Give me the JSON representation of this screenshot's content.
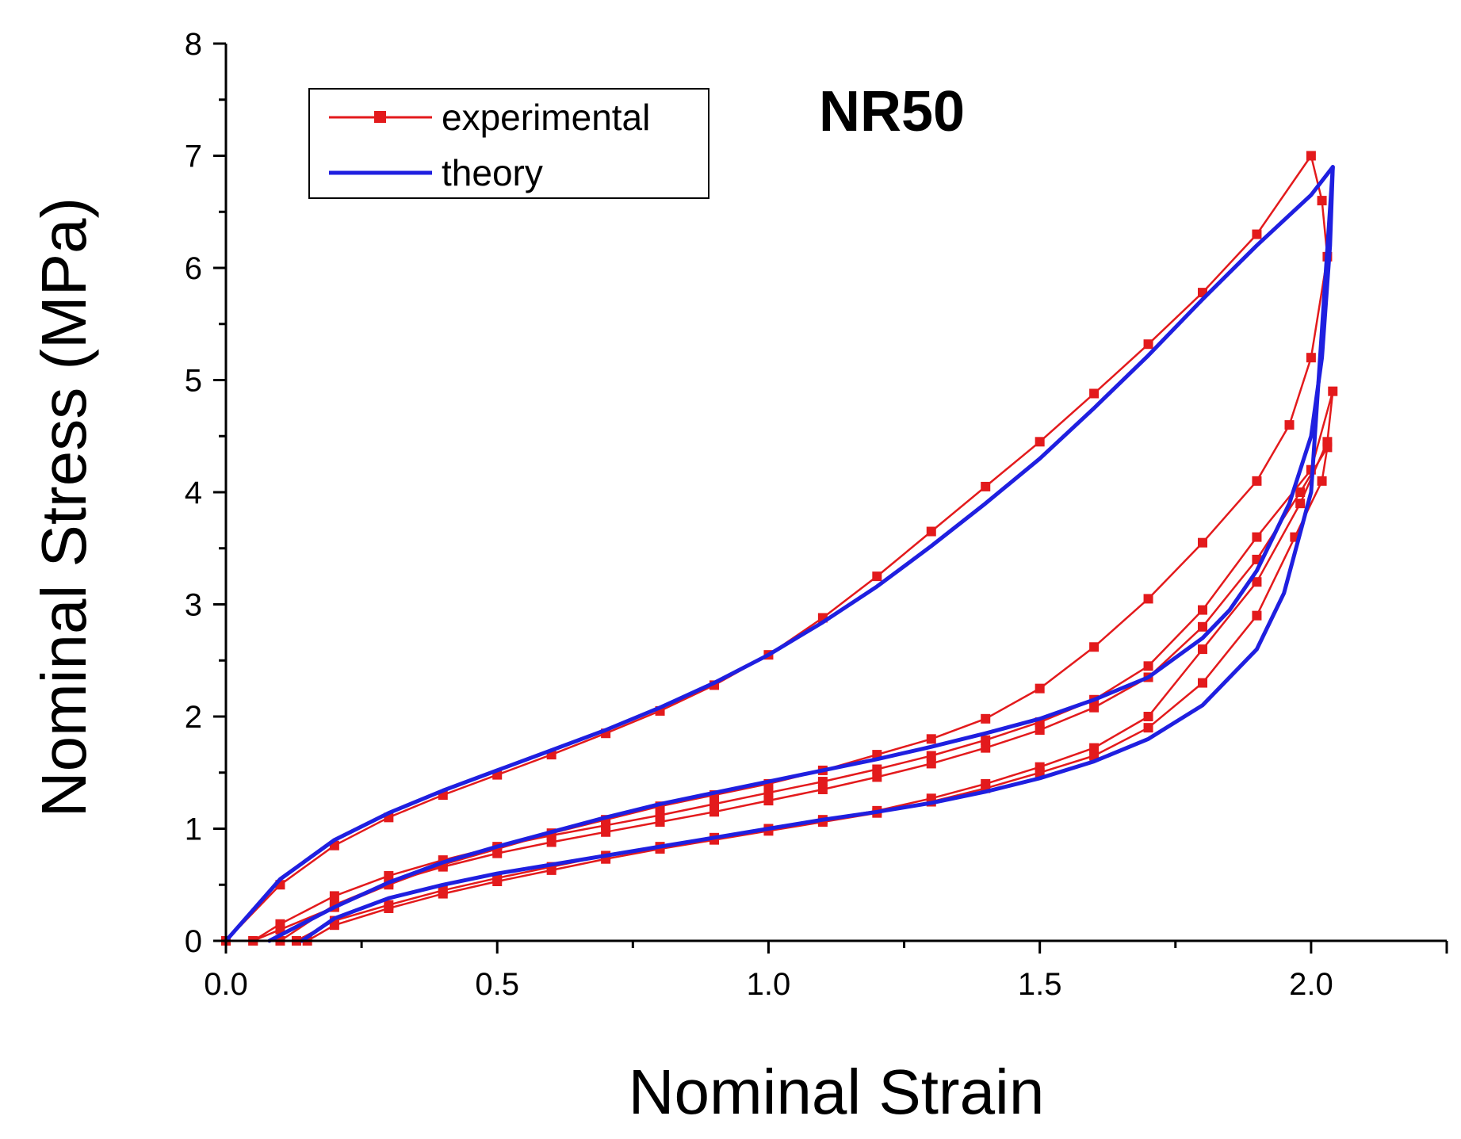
{
  "chart_data": {
    "type": "line",
    "title": "NR50",
    "xlabel": "Nominal Strain",
    "ylabel": "Nominal Stress (MPa)",
    "xlim": [
      0,
      2.25
    ],
    "ylim": [
      0,
      8
    ],
    "x_ticks": [
      "0.0",
      "0.5",
      "1.0",
      "1.5",
      "2.0"
    ],
    "x_tick_values": [
      0,
      0.5,
      1.0,
      1.5,
      2.0
    ],
    "y_ticks": [
      "0",
      "1",
      "2",
      "3",
      "4",
      "5",
      "6",
      "7",
      "8"
    ],
    "y_tick_values": [
      0,
      1,
      2,
      3,
      4,
      5,
      6,
      7,
      8
    ],
    "legend": {
      "position": "top-left",
      "entries": [
        {
          "label": "experimental",
          "color": "#e31a1c",
          "marker": "square"
        },
        {
          "label": "theory",
          "color": "#1f1fe0",
          "marker": "none"
        }
      ]
    },
    "series": [
      {
        "name": "experimental",
        "color": "#e31a1c",
        "marker": "square",
        "curves": [
          [
            [
              0,
              0
            ],
            [
              0.1,
              0.5
            ],
            [
              0.2,
              0.85
            ],
            [
              0.3,
              1.1
            ],
            [
              0.4,
              1.3
            ],
            [
              0.5,
              1.48
            ],
            [
              0.6,
              1.66
            ],
            [
              0.7,
              1.85
            ],
            [
              0.8,
              2.05
            ],
            [
              0.9,
              2.28
            ],
            [
              1.0,
              2.55
            ],
            [
              1.1,
              2.88
            ],
            [
              1.2,
              3.25
            ],
            [
              1.3,
              3.65
            ],
            [
              1.4,
              4.05
            ],
            [
              1.5,
              4.45
            ],
            [
              1.6,
              4.88
            ],
            [
              1.7,
              5.32
            ],
            [
              1.8,
              5.78
            ],
            [
              1.9,
              6.3
            ],
            [
              2.0,
              7.0
            ],
            [
              2.02,
              6.6
            ],
            [
              2.03,
              6.1
            ],
            [
              2.0,
              5.2
            ],
            [
              1.96,
              4.6
            ],
            [
              1.9,
              4.1
            ],
            [
              1.8,
              3.55
            ],
            [
              1.7,
              3.05
            ],
            [
              1.6,
              2.62
            ],
            [
              1.5,
              2.25
            ],
            [
              1.4,
              1.98
            ],
            [
              1.3,
              1.8
            ],
            [
              1.2,
              1.66
            ],
            [
              1.1,
              1.52
            ],
            [
              1.0,
              1.4
            ],
            [
              0.9,
              1.3
            ],
            [
              0.8,
              1.2
            ],
            [
              0.7,
              1.08
            ],
            [
              0.6,
              0.96
            ],
            [
              0.5,
              0.82
            ],
            [
              0.4,
              0.68
            ],
            [
              0.3,
              0.5
            ],
            [
              0.2,
              0.3
            ],
            [
              0.1,
              0.1
            ],
            [
              0.05,
              0
            ]
          ],
          [
            [
              0.05,
              0
            ],
            [
              0.1,
              0.15
            ],
            [
              0.2,
              0.4
            ],
            [
              0.3,
              0.58
            ],
            [
              0.4,
              0.72
            ],
            [
              0.5,
              0.84
            ],
            [
              0.6,
              0.94
            ],
            [
              0.7,
              1.03
            ],
            [
              0.8,
              1.12
            ],
            [
              0.9,
              1.22
            ],
            [
              1.0,
              1.32
            ],
            [
              1.1,
              1.42
            ],
            [
              1.2,
              1.53
            ],
            [
              1.3,
              1.65
            ],
            [
              1.4,
              1.79
            ],
            [
              1.5,
              1.95
            ],
            [
              1.6,
              2.15
            ],
            [
              1.7,
              2.45
            ],
            [
              1.8,
              2.95
            ],
            [
              1.9,
              3.6
            ],
            [
              2.0,
              4.2
            ],
            [
              2.04,
              4.9
            ],
            [
              2.03,
              4.45
            ],
            [
              1.98,
              3.9
            ],
            [
              1.9,
              3.2
            ],
            [
              1.8,
              2.6
            ],
            [
              1.7,
              2.0
            ],
            [
              1.6,
              1.72
            ],
            [
              1.5,
              1.55
            ],
            [
              1.4,
              1.4
            ],
            [
              1.3,
              1.27
            ],
            [
              1.2,
              1.16
            ],
            [
              1.1,
              1.08
            ],
            [
              1.0,
              1.0
            ],
            [
              0.9,
              0.92
            ],
            [
              0.8,
              0.84
            ],
            [
              0.7,
              0.76
            ],
            [
              0.6,
              0.66
            ],
            [
              0.5,
              0.56
            ],
            [
              0.4,
              0.45
            ],
            [
              0.3,
              0.32
            ],
            [
              0.2,
              0.18
            ],
            [
              0.13,
              0
            ]
          ],
          [
            [
              0.1,
              0
            ],
            [
              0.2,
              0.32
            ],
            [
              0.3,
              0.52
            ],
            [
              0.4,
              0.66
            ],
            [
              0.5,
              0.78
            ],
            [
              0.6,
              0.88
            ],
            [
              0.7,
              0.97
            ],
            [
              0.8,
              1.06
            ],
            [
              0.9,
              1.15
            ],
            [
              1.0,
              1.25
            ],
            [
              1.1,
              1.35
            ],
            [
              1.2,
              1.46
            ],
            [
              1.3,
              1.58
            ],
            [
              1.4,
              1.72
            ],
            [
              1.5,
              1.88
            ],
            [
              1.6,
              2.08
            ],
            [
              1.7,
              2.35
            ],
            [
              1.8,
              2.8
            ],
            [
              1.9,
              3.4
            ],
            [
              1.98,
              4.0
            ],
            [
              2.03,
              4.4
            ],
            [
              2.02,
              4.1
            ],
            [
              1.97,
              3.6
            ],
            [
              1.9,
              2.9
            ],
            [
              1.8,
              2.3
            ],
            [
              1.7,
              1.9
            ],
            [
              1.6,
              1.65
            ],
            [
              1.5,
              1.5
            ],
            [
              1.4,
              1.36
            ],
            [
              1.3,
              1.24
            ],
            [
              1.2,
              1.14
            ],
            [
              1.1,
              1.06
            ],
            [
              1.0,
              0.98
            ],
            [
              0.9,
              0.9
            ],
            [
              0.8,
              0.82
            ],
            [
              0.7,
              0.73
            ],
            [
              0.6,
              0.63
            ],
            [
              0.5,
              0.53
            ],
            [
              0.4,
              0.42
            ],
            [
              0.3,
              0.29
            ],
            [
              0.2,
              0.14
            ],
            [
              0.15,
              0
            ]
          ]
        ]
      },
      {
        "name": "theory",
        "color": "#1f1fe0",
        "marker": "none",
        "curves": [
          [
            [
              0,
              0
            ],
            [
              0.1,
              0.55
            ],
            [
              0.2,
              0.9
            ],
            [
              0.3,
              1.14
            ],
            [
              0.4,
              1.34
            ],
            [
              0.5,
              1.52
            ],
            [
              0.6,
              1.7
            ],
            [
              0.7,
              1.88
            ],
            [
              0.8,
              2.08
            ],
            [
              0.9,
              2.3
            ],
            [
              1.0,
              2.55
            ],
            [
              1.1,
              2.84
            ],
            [
              1.2,
              3.16
            ],
            [
              1.3,
              3.52
            ],
            [
              1.4,
              3.9
            ],
            [
              1.5,
              4.3
            ],
            [
              1.6,
              4.75
            ],
            [
              1.7,
              5.22
            ],
            [
              1.8,
              5.72
            ],
            [
              1.9,
              6.2
            ],
            [
              2.0,
              6.65
            ],
            [
              2.04,
              6.9
            ],
            [
              2.035,
              6.2
            ],
            [
              2.02,
              5.2
            ],
            [
              2.0,
              4.5
            ],
            [
              1.96,
              3.9
            ],
            [
              1.9,
              3.3
            ],
            [
              1.85,
              2.95
            ],
            [
              1.8,
              2.7
            ],
            [
              1.7,
              2.35
            ],
            [
              1.6,
              2.15
            ],
            [
              1.5,
              1.98
            ],
            [
              1.4,
              1.85
            ],
            [
              1.3,
              1.73
            ],
            [
              1.2,
              1.62
            ],
            [
              1.1,
              1.52
            ],
            [
              1.0,
              1.42
            ],
            [
              0.9,
              1.32
            ],
            [
              0.8,
              1.22
            ],
            [
              0.7,
              1.1
            ],
            [
              0.6,
              0.97
            ],
            [
              0.5,
              0.84
            ],
            [
              0.4,
              0.7
            ],
            [
              0.3,
              0.52
            ],
            [
              0.2,
              0.3
            ],
            [
              0.1,
              0.05
            ],
            [
              0.08,
              0
            ]
          ],
          [
            [
              0.14,
              0
            ],
            [
              0.2,
              0.2
            ],
            [
              0.3,
              0.38
            ],
            [
              0.4,
              0.5
            ],
            [
              0.5,
              0.6
            ],
            [
              0.6,
              0.68
            ],
            [
              0.7,
              0.76
            ],
            [
              0.8,
              0.84
            ],
            [
              0.9,
              0.92
            ],
            [
              1.0,
              1.0
            ],
            [
              1.1,
              1.08
            ],
            [
              1.2,
              1.15
            ],
            [
              1.3,
              1.23
            ],
            [
              1.4,
              1.33
            ],
            [
              1.5,
              1.45
            ],
            [
              1.6,
              1.6
            ],
            [
              1.7,
              1.8
            ],
            [
              1.8,
              2.1
            ],
            [
              1.9,
              2.6
            ],
            [
              1.95,
              3.1
            ],
            [
              2.0,
              4.0
            ],
            [
              2.04,
              6.9
            ]
          ]
        ]
      }
    ]
  }
}
